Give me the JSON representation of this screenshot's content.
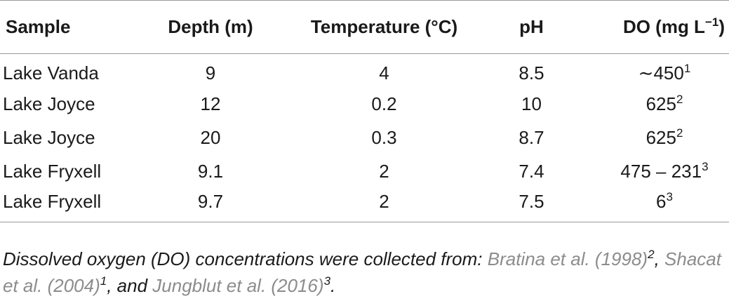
{
  "table": {
    "headers": {
      "sample": "Sample",
      "depth": "Depth (m)",
      "temperature": "Temperature (°C)",
      "ph": "pH",
      "do_label": "DO (mg L",
      "do_exp": "−1",
      "do_close": ")"
    },
    "rows": [
      {
        "sample": "Lake Vanda",
        "depth": "9",
        "temperature": "4",
        "ph": "8.5",
        "do": "∼450",
        "do_sup": "1"
      },
      {
        "sample": "Lake Joyce",
        "depth": "12",
        "temperature": "0.2",
        "ph": "10",
        "do": "625",
        "do_sup": "2"
      },
      {
        "sample": "Lake Joyce",
        "depth": "20",
        "temperature": "0.3",
        "ph": "8.7",
        "do": "625",
        "do_sup": "2"
      },
      {
        "sample": "Lake Fryxell",
        "depth": "9.1",
        "temperature": "2",
        "ph": "7.4",
        "do": "475 – 231",
        "do_sup": "3"
      },
      {
        "sample": "Lake Fryxell",
        "depth": "9.7",
        "temperature": "2",
        "ph": "7.5",
        "do": "6",
        "do_sup": "3"
      }
    ]
  },
  "footnote": {
    "intro": "Dissolved oxygen (DO) concentrations were collected from: ",
    "ref1": "Bratina et al. (1998)",
    "ref1_sup": "2",
    "sep1": ", ",
    "ref2": "Shacat et al. (2004)",
    "ref2_sup": "1",
    "sep2": ", and ",
    "ref3": "Jungblut et al. (2016)",
    "ref3_sup": "3",
    "end": "."
  },
  "colors": {
    "text": "#1a1a1a",
    "reference_link": "#8c8c8c",
    "rule": "#9a9a9a"
  }
}
